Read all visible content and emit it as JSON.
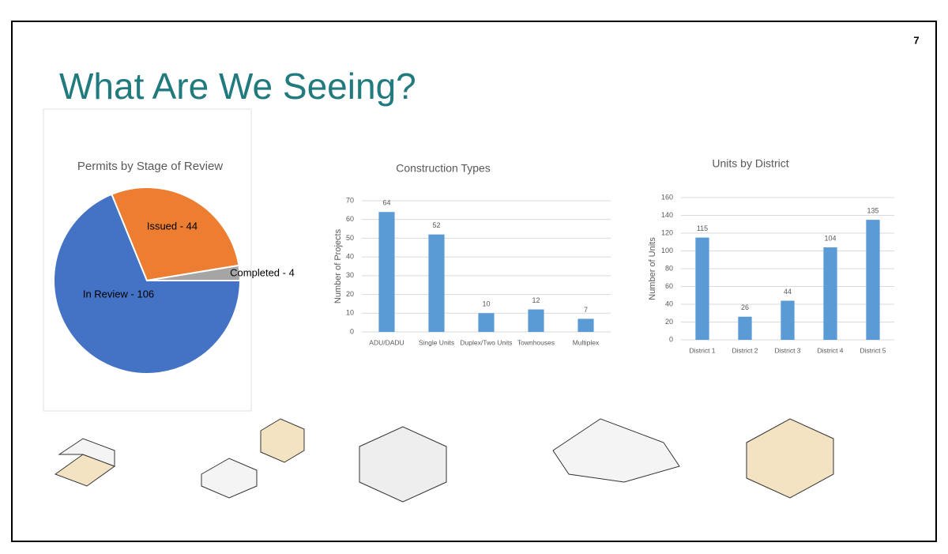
{
  "slide": {
    "title": "What Are We Seeing?",
    "page_number": "7"
  },
  "chart_data": [
    {
      "type": "pie",
      "title": "Permits by Stage of Review",
      "values": [
        106,
        44,
        4
      ],
      "value_labels": [
        "In Review - 106",
        "Issued - 44",
        "Completed - 4"
      ],
      "colors": [
        "#4472c4",
        "#ed7d31",
        "#a5a5a5"
      ]
    },
    {
      "type": "bar",
      "title": "Construction Types",
      "y_label": "Number of Projects",
      "categories": [
        "ADU/DADU",
        "Single Units",
        "Duplex/Two Units",
        "Townhouses",
        "Multiplex"
      ],
      "values": [
        64,
        52,
        10,
        12,
        7
      ],
      "color": "#5b9bd5",
      "ylim": [
        0,
        70
      ],
      "yticks": [
        0,
        10,
        20,
        30,
        40,
        50,
        60,
        70
      ],
      "grid": true
    },
    {
      "type": "bar",
      "title": "Units by District",
      "y_label": "Number of Units",
      "categories": [
        "District 1",
        "District 2",
        "District 3",
        "District 4",
        "District 5"
      ],
      "values": [
        115,
        26,
        44,
        104,
        135
      ],
      "color": "#5b9bd5",
      "ylim": [
        0,
        160
      ],
      "yticks": [
        0,
        20,
        40,
        60,
        80,
        100,
        120,
        140,
        160
      ],
      "grid": true
    }
  ]
}
